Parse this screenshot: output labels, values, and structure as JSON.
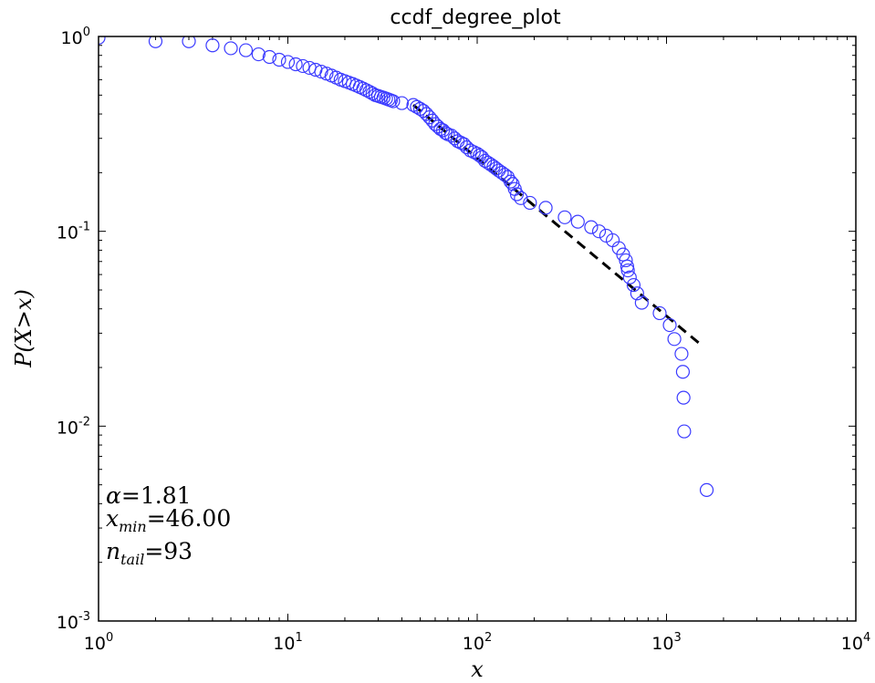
{
  "chart_data": {
    "type": "scatter",
    "title": "ccdf_degree_plot",
    "xlabel": "x",
    "ylabel": "P(X>x)",
    "xscale": "log",
    "yscale": "log",
    "xlim": [
      1,
      10000
    ],
    "ylim": [
      0.001,
      1
    ],
    "grid": false,
    "x_tick_labels": [
      {
        "base": "10",
        "exp": "0"
      },
      {
        "base": "10",
        "exp": "1"
      },
      {
        "base": "10",
        "exp": "2"
      },
      {
        "base": "10",
        "exp": "3"
      },
      {
        "base": "10",
        "exp": "4"
      }
    ],
    "y_tick_labels": [
      {
        "base": "10",
        "exp": "-3"
      },
      {
        "base": "10",
        "exp": "-2"
      },
      {
        "base": "10",
        "exp": "-1"
      },
      {
        "base": "10",
        "exp": "0"
      }
    ],
    "series": [
      {
        "kind": "scatter",
        "marker": "open-circle",
        "color": "#3b3bff",
        "points": [
          [
            1,
            0.985
          ],
          [
            2,
            0.945
          ],
          [
            3,
            0.945
          ],
          [
            4,
            0.9
          ],
          [
            5,
            0.87
          ],
          [
            6,
            0.85
          ],
          [
            7,
            0.81
          ],
          [
            8,
            0.785
          ],
          [
            9,
            0.76
          ],
          [
            10,
            0.74
          ],
          [
            11,
            0.72
          ],
          [
            12,
            0.705
          ],
          [
            13,
            0.69
          ],
          [
            14,
            0.675
          ],
          [
            15,
            0.66
          ],
          [
            16,
            0.645
          ],
          [
            17,
            0.63
          ],
          [
            18,
            0.615
          ],
          [
            19,
            0.6
          ],
          [
            20,
            0.59
          ],
          [
            21,
            0.58
          ],
          [
            22,
            0.57
          ],
          [
            23,
            0.56
          ],
          [
            24,
            0.55
          ],
          [
            25,
            0.54
          ],
          [
            26,
            0.53
          ],
          [
            27,
            0.52
          ],
          [
            28,
            0.51
          ],
          [
            29,
            0.5
          ],
          [
            30,
            0.495
          ],
          [
            31,
            0.49
          ],
          [
            32,
            0.485
          ],
          [
            33,
            0.48
          ],
          [
            34,
            0.475
          ],
          [
            35,
            0.47
          ],
          [
            36,
            0.465
          ],
          [
            40,
            0.455
          ],
          [
            46,
            0.445
          ],
          [
            48,
            0.435
          ],
          [
            50,
            0.425
          ],
          [
            52,
            0.415
          ],
          [
            54,
            0.4
          ],
          [
            56,
            0.385
          ],
          [
            58,
            0.37
          ],
          [
            60,
            0.355
          ],
          [
            62,
            0.345
          ],
          [
            64,
            0.335
          ],
          [
            66,
            0.33
          ],
          [
            68,
            0.32
          ],
          [
            70,
            0.315
          ],
          [
            73,
            0.31
          ],
          [
            76,
            0.3
          ],
          [
            79,
            0.29
          ],
          [
            82,
            0.285
          ],
          [
            85,
            0.28
          ],
          [
            88,
            0.27
          ],
          [
            92,
            0.26
          ],
          [
            96,
            0.255
          ],
          [
            100,
            0.25
          ],
          [
            103,
            0.245
          ],
          [
            106,
            0.24
          ],
          [
            110,
            0.23
          ],
          [
            114,
            0.225
          ],
          [
            118,
            0.22
          ],
          [
            122,
            0.215
          ],
          [
            126,
            0.21
          ],
          [
            130,
            0.205
          ],
          [
            135,
            0.2
          ],
          [
            140,
            0.195
          ],
          [
            145,
            0.19
          ],
          [
            150,
            0.18
          ],
          [
            154,
            0.175
          ],
          [
            158,
            0.165
          ],
          [
            162,
            0.155
          ],
          [
            170,
            0.148
          ],
          [
            190,
            0.14
          ],
          [
            230,
            0.132
          ],
          [
            290,
            0.118
          ],
          [
            340,
            0.112
          ],
          [
            400,
            0.105
          ],
          [
            440,
            0.1
          ],
          [
            480,
            0.095
          ],
          [
            520,
            0.09
          ],
          [
            560,
            0.082
          ],
          [
            590,
            0.076
          ],
          [
            610,
            0.071
          ],
          [
            620,
            0.066
          ],
          [
            625,
            0.063
          ],
          [
            640,
            0.058
          ],
          [
            670,
            0.053
          ],
          [
            700,
            0.048
          ],
          [
            740,
            0.043
          ],
          [
            920,
            0.038
          ],
          [
            1040,
            0.033
          ],
          [
            1100,
            0.028
          ],
          [
            1200,
            0.0235
          ],
          [
            1220,
            0.019
          ],
          [
            1230,
            0.014
          ],
          [
            1240,
            0.0094
          ],
          [
            1630,
            0.0047
          ]
        ]
      },
      {
        "kind": "line",
        "style": "dashed",
        "color": "#000000",
        "alpha": 1.81,
        "xmin": 46,
        "x_end": 1500
      }
    ],
    "annotations": [
      {
        "symbol": "α",
        "sub": "",
        "value": "1.81"
      },
      {
        "symbol": "x",
        "sub": "min",
        "value": "46.00"
      },
      {
        "symbol": "n",
        "sub": "tail",
        "value": "93"
      }
    ]
  }
}
